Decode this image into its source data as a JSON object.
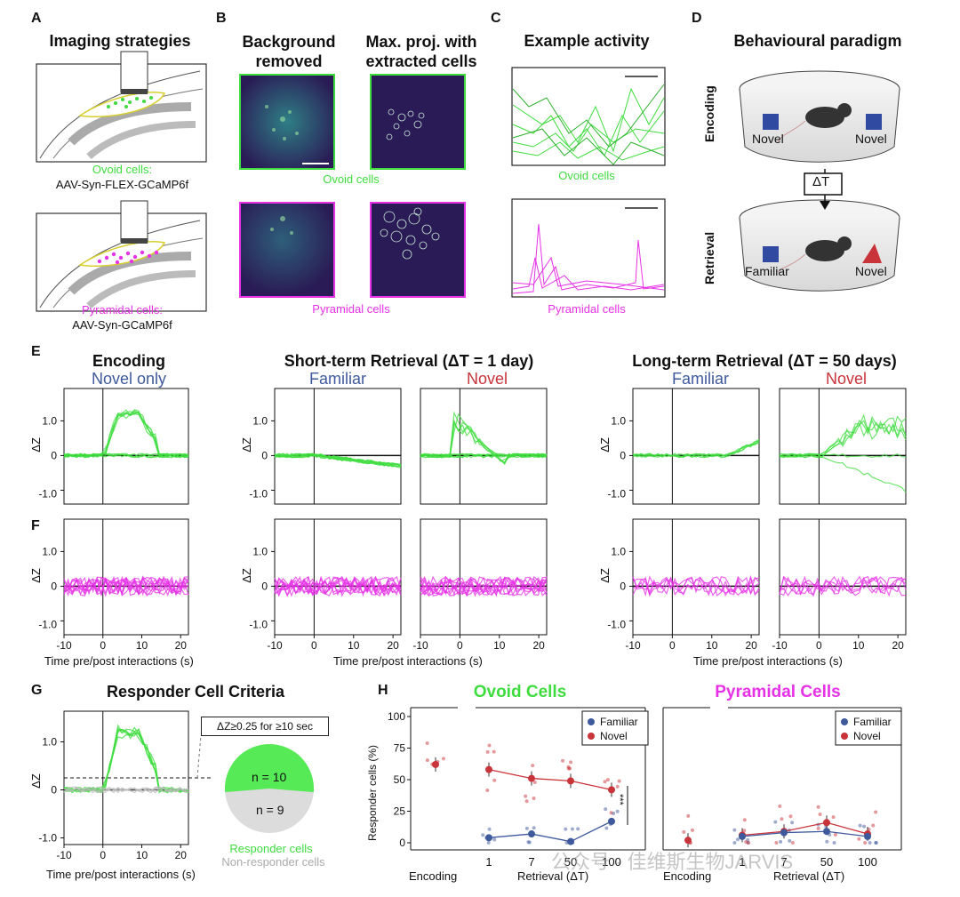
{
  "panels": {
    "A": {
      "letter": "A",
      "title": "Imaging strategies",
      "ovoid_label": "Ovoid cells:",
      "ovoid_virus": "AAV-Syn-FLEX-GCaMP6f",
      "pyr_label": "Pyramidal cells:",
      "pyr_virus": "AAV-Syn-GCaMP6f"
    },
    "B": {
      "letter": "B",
      "col1": "Background removed",
      "col2": "Max. proj. with extracted cells",
      "ovoid": "Ovoid cells",
      "pyr": "Pyramidal cells"
    },
    "C": {
      "letter": "C",
      "title": "Example activity",
      "ovoid": "Ovoid cells",
      "pyr": "Pyramidal cells"
    },
    "D": {
      "letter": "D",
      "title": "Behavioural paradigm",
      "encoding": "Encoding",
      "retrieval": "Retrieval",
      "delta": "ΔT",
      "novel": "Novel",
      "familiar": "Familiar"
    },
    "E": {
      "letter": "E",
      "encoding": "Encoding",
      "novel_only": "Novel only",
      "short": "Short-term Retrieval (ΔT = 1 day)",
      "long": "Long-term Retrieval (ΔT = 50 days)",
      "familiar": "Familiar",
      "novel": "Novel"
    },
    "F": {
      "letter": "F"
    },
    "G": {
      "letter": "G",
      "title": "Responder Cell Criteria",
      "criterion": "ΔZ≥0.25 for ≥10 sec",
      "n_resp": "n = 10",
      "n_non": "n = 9",
      "resp": "Responder cells",
      "nonresp": "Non-responder cells"
    },
    "H": {
      "letter": "H",
      "ovoid": "Ovoid Cells",
      "pyr": "Pyramidal Cells",
      "ylabel": "Responder cells (%)",
      "enc": "Encoding",
      "ret": "Retrieval (ΔT)",
      "legend_fam": "Familiar",
      "legend_nov": "Novel",
      "sig": "***"
    }
  },
  "axes": {
    "dz_label": "ΔZ",
    "yticks": [
      "1.0",
      "0",
      "-1.0"
    ],
    "xticks": [
      "-10",
      "0",
      "10",
      "20"
    ],
    "xlabel": "Time pre/post interactions (s)",
    "h_yticks": [
      "100",
      "75",
      "50",
      "25",
      "0"
    ],
    "h_xticks": [
      "1",
      "7",
      "50",
      "100"
    ]
  },
  "colors": {
    "ovoid": "#3fdc3f",
    "pyramidal": "#e632e6",
    "familiar": "#3f5a9c",
    "novel": "#c9333a"
  },
  "watermark": "公众号 · 佳维斯生物JARVIS",
  "chart_data": [
    {
      "type": "scatter",
      "title": "Ovoid Cells",
      "ylabel": "Responder cells (%)",
      "ylim": [
        0,
        100
      ],
      "categories": [
        "Encoding",
        "1",
        "7",
        "50",
        "100"
      ],
      "series": [
        {
          "name": "Familiar",
          "values": [
            null,
            4,
            7,
            1,
            17
          ]
        },
        {
          "name": "Novel",
          "values": [
            62,
            58,
            51,
            49,
            42
          ]
        }
      ]
    },
    {
      "type": "scatter",
      "title": "Pyramidal Cells",
      "ylabel": "Responder cells (%)",
      "ylim": [
        0,
        100
      ],
      "categories": [
        "Encoding",
        "1",
        "7",
        "50",
        "100"
      ],
      "series": [
        {
          "name": "Familiar",
          "values": [
            null,
            5,
            8,
            9,
            5
          ]
        },
        {
          "name": "Novel",
          "values": [
            2,
            6,
            9,
            16,
            7
          ]
        }
      ]
    }
  ]
}
